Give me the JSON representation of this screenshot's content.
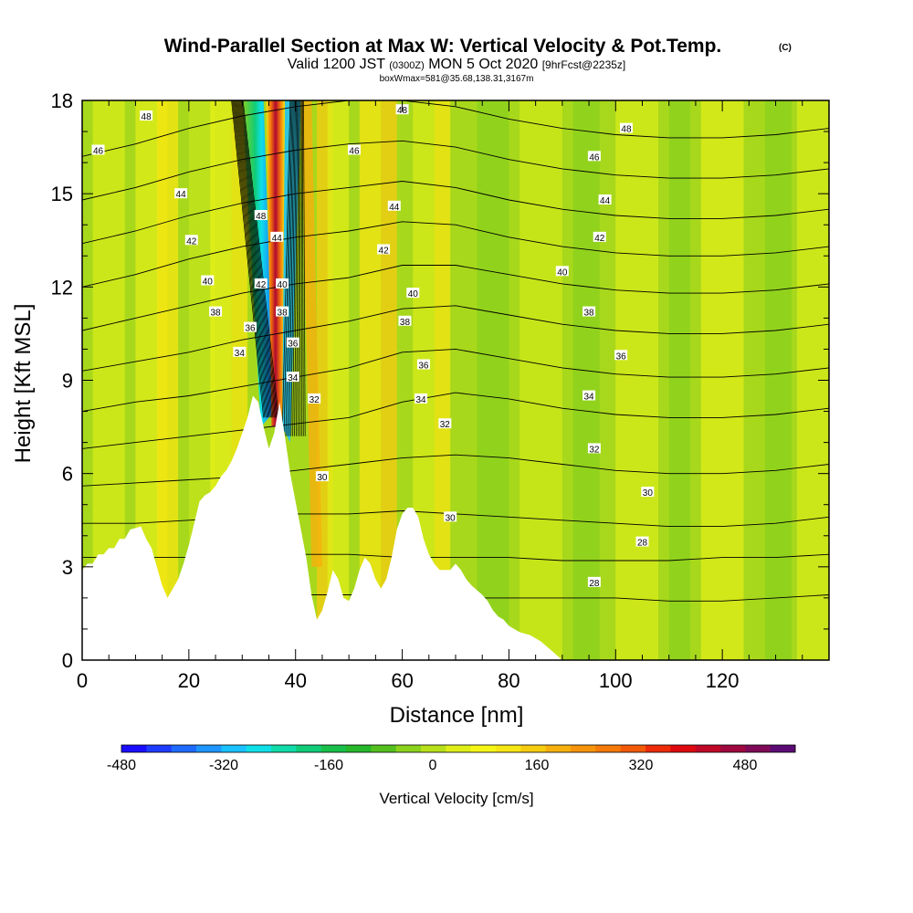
{
  "header": {
    "title": "Wind-Parallel Section at Max W: Vertical Velocity & Pot.Temp.",
    "copyright": "(C)",
    "valid_prefix": "Valid 1200 JST",
    "utc": "(0300Z)",
    "valid_date": "MON 5 Oct 2020",
    "forecast": "[9hrFcst@2235z]",
    "boxwmax": "boxWmax=581@35.68,138.31,3167m"
  },
  "chart_data": {
    "type": "heatmap",
    "xlabel": "Distance [nm]",
    "ylabel": "Height [Kft MSL]",
    "xlim": [
      0,
      140
    ],
    "ylim": [
      0,
      18
    ],
    "x_ticks": [
      0,
      20,
      40,
      60,
      80,
      100,
      120
    ],
    "y_ticks": [
      0,
      3,
      6,
      9,
      12,
      15,
      18
    ],
    "terrain": [
      [
        0,
        2.9
      ],
      [
        1,
        3.1
      ],
      [
        2,
        3.1
      ],
      [
        3,
        3.4
      ],
      [
        4,
        3.4
      ],
      [
        5,
        3.6
      ],
      [
        6,
        3.6
      ],
      [
        7,
        3.9
      ],
      [
        8,
        3.9
      ],
      [
        9,
        4.2
      ],
      [
        11,
        4.3
      ],
      [
        12,
        3.9
      ],
      [
        13,
        3.6
      ],
      [
        14,
        3.0
      ],
      [
        15,
        2.4
      ],
      [
        16,
        2.0
      ],
      [
        17,
        2.3
      ],
      [
        18,
        2.6
      ],
      [
        19,
        3.1
      ],
      [
        20,
        3.7
      ],
      [
        21,
        4.4
      ],
      [
        22,
        5.1
      ],
      [
        23,
        5.3
      ],
      [
        24,
        5.4
      ],
      [
        25,
        5.6
      ],
      [
        26,
        5.9
      ],
      [
        27,
        6.1
      ],
      [
        28,
        6.4
      ],
      [
        29,
        6.8
      ],
      [
        30,
        7.3
      ],
      [
        31,
        7.8
      ],
      [
        32,
        8.5
      ],
      [
        33,
        8.3
      ],
      [
        34,
        7.5
      ],
      [
        35,
        6.8
      ],
      [
        36,
        7.3
      ],
      [
        37,
        8.3
      ],
      [
        38,
        7.2
      ],
      [
        39,
        6.0
      ],
      [
        40,
        5.1
      ],
      [
        41,
        4.2
      ],
      [
        42,
        3.3
      ],
      [
        43,
        2.1
      ],
      [
        44,
        1.3
      ],
      [
        45,
        1.6
      ],
      [
        46,
        2.2
      ],
      [
        47,
        2.9
      ],
      [
        48,
        2.6
      ],
      [
        49,
        2.0
      ],
      [
        50,
        1.9
      ],
      [
        51,
        2.3
      ],
      [
        52,
        2.9
      ],
      [
        53,
        3.3
      ],
      [
        54,
        3.1
      ],
      [
        55,
        2.6
      ],
      [
        56,
        2.3
      ],
      [
        57,
        2.6
      ],
      [
        58,
        3.3
      ],
      [
        59,
        4.2
      ],
      [
        60,
        4.7
      ],
      [
        61,
        4.9
      ],
      [
        62,
        4.9
      ],
      [
        63,
        4.6
      ],
      [
        64,
        3.9
      ],
      [
        65,
        3.4
      ],
      [
        66,
        3.1
      ],
      [
        67,
        2.9
      ],
      [
        69,
        2.9
      ],
      [
        70,
        3.1
      ],
      [
        71,
        2.9
      ],
      [
        72,
        2.6
      ],
      [
        73,
        2.4
      ],
      [
        75,
        2.1
      ],
      [
        76,
        1.9
      ],
      [
        77,
        1.6
      ],
      [
        78,
        1.4
      ],
      [
        79,
        1.3
      ],
      [
        80,
        1.1
      ],
      [
        82,
        0.9
      ],
      [
        84,
        0.8
      ],
      [
        86,
        0.6
      ],
      [
        88,
        0.3
      ],
      [
        90,
        0.0
      ],
      [
        140,
        0.0
      ]
    ],
    "contours": [
      {
        "level": 28,
        "y": [
          1.9,
          1.9,
          2.0,
          2.0,
          2.1,
          2.1,
          2.1,
          2.0,
          2.0,
          2.0,
          2.0,
          1.9,
          1.9,
          2.0,
          2.1
        ]
      },
      {
        "level": 28,
        "y": [
          3.3,
          3.3,
          3.3,
          3.4,
          3.4,
          3.4,
          3.3,
          3.3,
          3.3,
          3.2,
          3.2,
          3.2,
          3.3,
          3.3,
          3.4
        ]
      },
      {
        "level": 30,
        "y": [
          4.4,
          4.4,
          4.5,
          4.6,
          4.7,
          4.7,
          4.8,
          4.7,
          4.6,
          4.5,
          4.4,
          4.3,
          4.3,
          4.4,
          4.6
        ]
      },
      {
        "level": 32,
        "y": [
          5.6,
          5.7,
          5.8,
          5.9,
          6.1,
          6.3,
          6.5,
          6.6,
          6.5,
          6.3,
          6.1,
          6.0,
          6.0,
          6.1,
          6.3
        ]
      },
      {
        "level": 34,
        "y": [
          6.8,
          7.0,
          7.2,
          7.4,
          7.6,
          7.8,
          8.3,
          8.6,
          8.4,
          8.1,
          7.9,
          7.8,
          7.8,
          7.9,
          8.1
        ]
      },
      {
        "level": 36,
        "y": [
          8.0,
          8.3,
          8.5,
          8.8,
          9.1,
          9.4,
          9.9,
          10.0,
          9.7,
          9.4,
          9.2,
          9.1,
          9.1,
          9.2,
          9.4
        ]
      },
      {
        "level": 38,
        "y": [
          9.3,
          9.6,
          9.9,
          10.3,
          10.6,
          10.9,
          11.3,
          11.4,
          11.1,
          10.8,
          10.6,
          10.5,
          10.5,
          10.6,
          10.8
        ]
      },
      {
        "level": 40,
        "y": [
          10.6,
          11.0,
          11.4,
          11.8,
          12.1,
          12.3,
          12.7,
          12.7,
          12.4,
          12.1,
          11.9,
          11.8,
          11.8,
          11.9,
          12.1
        ]
      },
      {
        "level": 42,
        "y": [
          12.0,
          12.4,
          12.9,
          13.3,
          13.6,
          13.8,
          14.1,
          14.0,
          13.6,
          13.3,
          13.1,
          13.0,
          13.0,
          13.1,
          13.3
        ]
      },
      {
        "level": 44,
        "y": [
          13.4,
          13.8,
          14.3,
          14.7,
          15.0,
          15.2,
          15.4,
          15.2,
          14.8,
          14.5,
          14.3,
          14.2,
          14.2,
          14.3,
          14.5
        ]
      },
      {
        "level": 46,
        "y": [
          14.8,
          15.2,
          15.7,
          16.1,
          16.4,
          16.6,
          16.7,
          16.5,
          16.1,
          15.8,
          15.6,
          15.5,
          15.5,
          15.6,
          15.8
        ]
      },
      {
        "level": 48,
        "y": [
          16.2,
          16.6,
          17.1,
          17.5,
          17.8,
          18.0,
          18.0,
          17.8,
          17.4,
          17.1,
          16.9,
          16.8,
          16.8,
          16.9,
          17.1
        ]
      }
    ],
    "contour_x": [
      0,
      10,
      20,
      30,
      40,
      50,
      60,
      70,
      80,
      90,
      100,
      110,
      120,
      130,
      140
    ],
    "contour_labels": [
      {
        "text": "48",
        "x": 12,
        "y": 17.5
      },
      {
        "text": "46",
        "x": 3,
        "y": 16.4
      },
      {
        "text": "44",
        "x": 18.5,
        "y": 15.0
      },
      {
        "text": "42",
        "x": 20.5,
        "y": 13.5
      },
      {
        "text": "40",
        "x": 23.5,
        "y": 12.2
      },
      {
        "text": "38",
        "x": 25,
        "y": 11.2
      },
      {
        "text": "34",
        "x": 29.5,
        "y": 9.9
      },
      {
        "text": "36",
        "x": 31.5,
        "y": 10.7
      },
      {
        "text": "48",
        "x": 33.5,
        "y": 14.3
      },
      {
        "text": "42",
        "x": 33.5,
        "y": 12.1
      },
      {
        "text": "44",
        "x": 36.5,
        "y": 13.6
      },
      {
        "text": "40",
        "x": 37.5,
        "y": 12.1
      },
      {
        "text": "38",
        "x": 37.5,
        "y": 11.2
      },
      {
        "text": "36",
        "x": 39.5,
        "y": 10.2
      },
      {
        "text": "34",
        "x": 39.5,
        "y": 9.1
      },
      {
        "text": "32",
        "x": 43.5,
        "y": 8.4
      },
      {
        "text": "30",
        "x": 45,
        "y": 5.9
      },
      {
        "text": "46",
        "x": 51,
        "y": 16.4
      },
      {
        "text": "48",
        "x": 60,
        "y": 17.7
      },
      {
        "text": "44",
        "x": 58.5,
        "y": 14.6
      },
      {
        "text": "42",
        "x": 56.5,
        "y": 13.2
      },
      {
        "text": "40",
        "x": 62,
        "y": 11.8
      },
      {
        "text": "38",
        "x": 60.5,
        "y": 10.9
      },
      {
        "text": "36",
        "x": 64,
        "y": 9.5
      },
      {
        "text": "34",
        "x": 63.5,
        "y": 8.4
      },
      {
        "text": "32",
        "x": 68,
        "y": 7.6
      },
      {
        "text": "30",
        "x": 69,
        "y": 4.6
      },
      {
        "text": "48",
        "x": 102,
        "y": 17.1
      },
      {
        "text": "46",
        "x": 96,
        "y": 16.2
      },
      {
        "text": "44",
        "x": 98,
        "y": 14.8
      },
      {
        "text": "42",
        "x": 97,
        "y": 13.6
      },
      {
        "text": "40",
        "x": 90,
        "y": 12.5
      },
      {
        "text": "38",
        "x": 95,
        "y": 11.2
      },
      {
        "text": "36",
        "x": 101,
        "y": 9.8
      },
      {
        "text": "34",
        "x": 95,
        "y": 8.5
      },
      {
        "text": "32",
        "x": 96,
        "y": 6.8
      },
      {
        "text": "30",
        "x": 106,
        "y": 5.4
      },
      {
        "text": "28",
        "x": 105,
        "y": 3.8
      },
      {
        "text": "28",
        "x": 96,
        "y": 2.5
      }
    ],
    "colorbar": {
      "label": "Vertical Velocity [cm/s]",
      "ticks": [
        "-480",
        "-320",
        "-160",
        "0",
        "160",
        "320",
        "480"
      ],
      "colors": [
        "#1a0dff",
        "#1e3cff",
        "#1f6bff",
        "#1f96ff",
        "#19c2ff",
        "#0fe0e8",
        "#0fdca8",
        "#10cc78",
        "#18c04a",
        "#26b82a",
        "#54c01e",
        "#8ad21c",
        "#b8e01a",
        "#e0ee18",
        "#f6f616",
        "#f6e612",
        "#f6cc10",
        "#f6b00e",
        "#f6940c",
        "#f47a0a",
        "#f25a08",
        "#ee2c08",
        "#e00810",
        "#c00828",
        "#a00840",
        "#800a58",
        "#5c0a74"
      ]
    }
  }
}
